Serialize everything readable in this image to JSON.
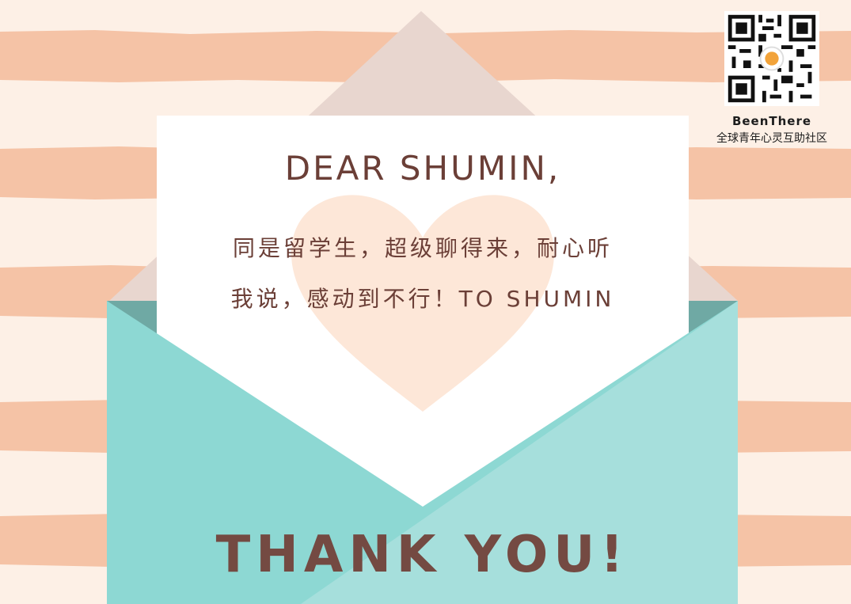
{
  "card": {
    "greeting": "DEAR SHUMIN,",
    "message_line1": "同是留学生，超级聊得来，耐心听",
    "message_line2": "我说，感动到不行！TO SHUMIN",
    "closing": "THANK YOU!"
  },
  "brand": {
    "name": "BeenThere",
    "tagline": "全球青年心灵互助社区",
    "qr_icon": "qr-code-icon"
  },
  "colors": {
    "background": "#fdf0e6",
    "stripe": "#f5c3a6",
    "envelope_flap": "#e8d6cf",
    "envelope_body": "#8dd8d3",
    "envelope_body_right": "#a6dfdc",
    "envelope_inner": "#6fa9a4",
    "letter": "#ffffff",
    "heart": "#fde7d8",
    "text": "#6b3f37",
    "closing_text": "#744a42"
  }
}
